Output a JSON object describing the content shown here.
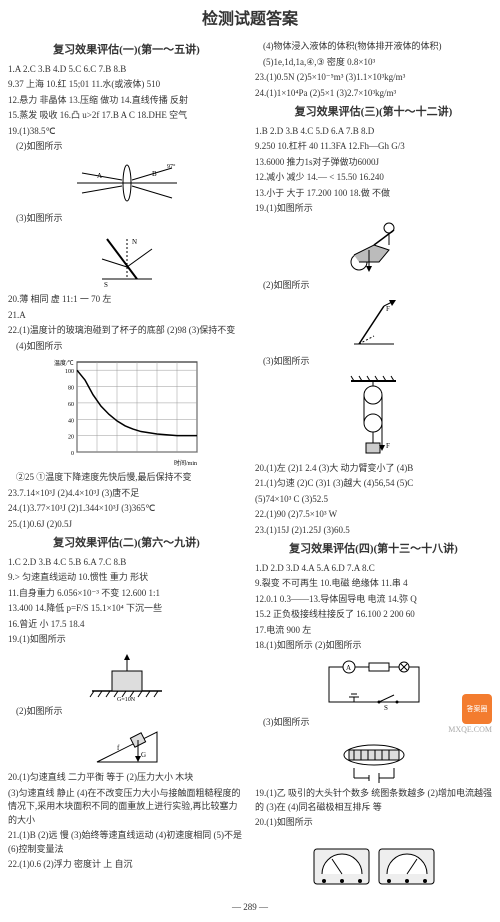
{
  "page": {
    "title": "检测试题答案",
    "pagenum": "— 289 —",
    "watermark": "MXQE.COM"
  },
  "left": {
    "s1": {
      "title": "复习效果评估(一)(第一～五讲)",
      "a1": "1.A 2.C 3.B 4.D 5.C 6.C 7.B 8.B",
      "a2": "9.37 上海 10.红 15;01 11.水(或液体) 510",
      "a3": "12.悬力 非晶体 13.压缩 做功 14.直线传播 反射",
      "a4": "15.蒸发 吸收 16.凸 u>2f 17.B A C 18.DHE 空气",
      "a5": "19.(1)38.5℃",
      "a6": "(2)如图所示",
      "a7": "(3)如图所示",
      "a8": "20.薄 相同 虚 11:1 一 70 左",
      "a9": "21.A",
      "a10": "22.(1)温度计的玻璃泡碰到了杯子的底部 (2)98 (3)保持不变",
      "a11": "(4)如图所示",
      "a12": "②25 ①温度下降速度先快后慢,最后保持不变",
      "a13": "23.7.14×10³J (2)4.4×10³J (3)唐不足",
      "a14": "24.(1)3.77×10³J (2)1.344×10³J (3)365℃",
      "a15": "25.(1)0.6J (2)0.5J",
      "chart": {
        "type": "line",
        "xlabel": "时间/min",
        "ylabel": "温度/℃",
        "yticks": [
          0,
          20,
          40,
          60,
          80,
          100
        ],
        "xmax": 30,
        "ylim": [
          0,
          110
        ],
        "background_color": "#ffffff",
        "grid_color": "#999",
        "line_color": "#000",
        "data_x": [
          0,
          2,
          4,
          6,
          8,
          10,
          12,
          14,
          16,
          20,
          25,
          30
        ],
        "data_y": [
          100,
          88,
          70,
          56,
          46,
          38,
          32,
          28,
          25,
          22,
          20,
          20
        ]
      }
    },
    "s2": {
      "title": "复习效果评估(二)(第六～九讲)",
      "a1": "1.C 2.D 3.B 4.C 5.B 6.A 7.C 8.B",
      "a2": "9.> 匀速直线运动 10.惯性 重力 形状",
      "a3": "11.自身重力 6.056×10⁻³ 不变 12.600 1:1",
      "a4": "13.400 14.降低 p=F/S 15.1×10⁴ 下沉一些",
      "a5": "16.曾近 小 17.5 18.4",
      "a6": "19.(1)如图所示",
      "a7": "(2)如图所示",
      "a8": "20.(1)匀速直线 二力平衡 等于 (2)压力大小 木块",
      "a9": "(3)匀速直线 静止 (4)在不改变压力大小与接触面粗糙程度的情况下,采用木块面积不同的面重放上进行实验,再比较塞力的大小",
      "a10": "21.(1)B (2)远 慢 (3)始终等速直线运动 (4)初速度相同 (5)不是 (6)控制变量法",
      "a11": "22.(1)0.6 (2)浮力 密度计 上 自沉"
    }
  },
  "right": {
    "s2b": {
      "a1": "(4)物体浸入液体的体积(物体排开液体的体积)",
      "a2": "(5)1e,1d,1a,④,③ 密度 0.8×10³",
      "a3": "23.(1)0.5N (2)5×10⁻⁵m³ (3)1.1×10³kg/m³",
      "a4": "24.(1)1×10⁴Pa (2)5×1 (3)2.7×10³kg/m³"
    },
    "s3": {
      "title": "复习效果评估(三)(第十～十二讲)",
      "a1": "1.B 2.D 3.B 4.C 5.D 6.A 7.B 8.D",
      "a2": "9.250 10.杠杆 40 11.3FA 12.Fh—Gh G/3",
      "a3": "13.6000 推力1s对子弹做功6000J",
      "a4": "12.减小 减少 14.— < 15.50 16.240",
      "a5": "13.小于 大于 17.200 100 18.做 不做",
      "a6": "19.(1)如图所示",
      "a7": "(2)如图所示",
      "a8": "(3)如图所示",
      "a9": "20.(1)左 (2)1 2.4 (3)大 动力臂变小了 (4)B",
      "a10": "21.(1)匀速 (2)C (3)1 (3)越大 (4)56,54 (5)C",
      "a11": "(5)74×10³ C (3)52.5",
      "a12": "22.(1)90 (2)7.5×10³ W",
      "a13": "23.(1)15J (2)1.25J (3)60.5"
    },
    "s4": {
      "title": "复习效果评估(四)(第十三～十八讲)",
      "a1": "1.D 2.D 3.D 4.A 5.A 6.D 7.A 8.C",
      "a2": "9.裂变 不可再生 10.电磁 绝缘体 11.串 4",
      "a3": "12.0.1 0.3——13.导体固导电 电流 14.弥 Q",
      "a4": "15.2 正负极接线柱接反了 16.100 2 200 60",
      "a5": "17.电流 900 左",
      "a6": "18.(1)如图所示 (2)如图所示",
      "a7": "(3)如图所示",
      "a8": "19.(1)乙 吸引的大头针个数多 统图条数越多 (2)增加电流越强的 (3)在 (4)同名磁极相互排斥 等",
      "a9": "20.(1)如图所示"
    }
  },
  "colors": {
    "ink": "#333333",
    "line": "#000000",
    "grid": "#999999",
    "orange": "#f37c2f"
  }
}
